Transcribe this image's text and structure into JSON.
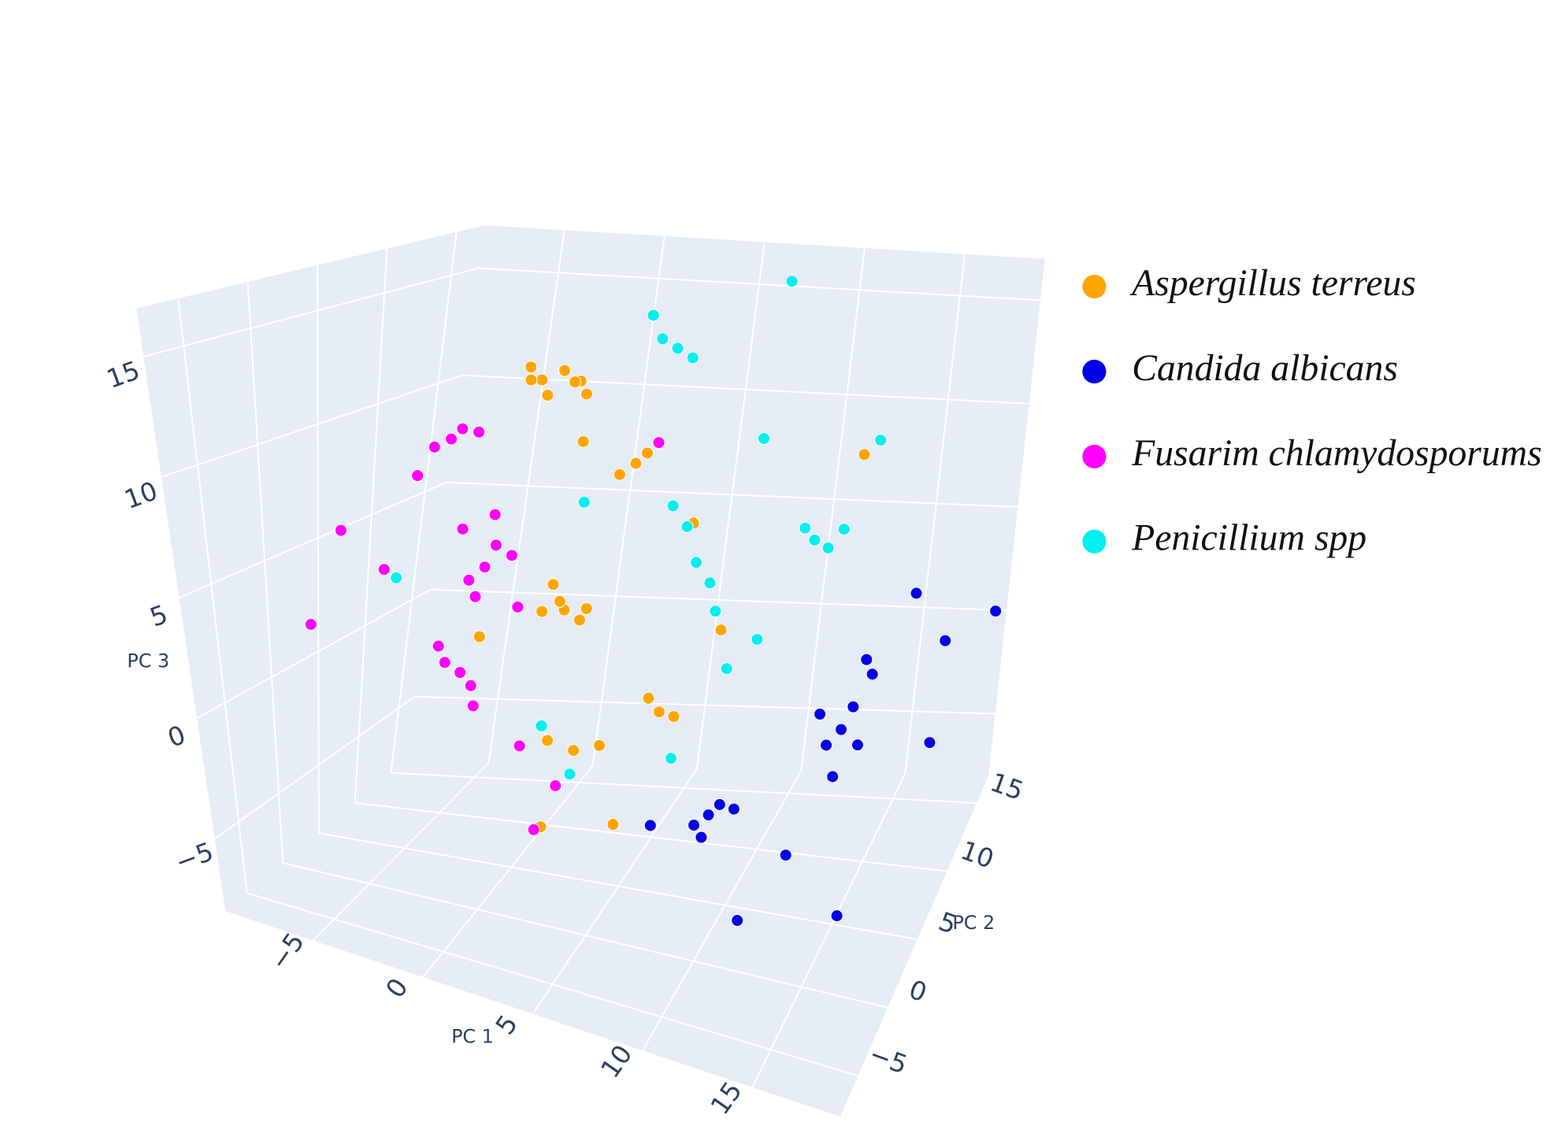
{
  "chart_data": {
    "type": "scatter3d",
    "xlabel": "PC 1",
    "ylabel": "PC 2",
    "zlabel": "PC 3",
    "xlim": [
      -9,
      19
    ],
    "ylim": [
      -8,
      17
    ],
    "zlim": [
      -8,
      17
    ],
    "xticks": [
      {
        "value": -5,
        "label": "−5"
      },
      0,
      5,
      10,
      15
    ],
    "yticks": [
      {
        "value": -5,
        "label": "−5"
      },
      0,
      5,
      10,
      15
    ],
    "zticks": [
      {
        "value": -5,
        "label": "−5"
      },
      0,
      5,
      10,
      15
    ],
    "grid": true,
    "series": [
      {
        "name": "Aspergillus terreus",
        "color": "#ffa500",
        "x": [
          1,
          2,
          1.5,
          2.5,
          0.5,
          2,
          1,
          3,
          3,
          2.5,
          3.5,
          3,
          2,
          4,
          4,
          4.5,
          3.5,
          7,
          6.5,
          7.5,
          5,
          4,
          3,
          2,
          6,
          0,
          3,
          9,
          13,
          5
        ],
        "y": [
          5,
          5,
          4.5,
          5.5,
          5,
          6,
          4,
          5,
          3,
          3,
          3.5,
          2.5,
          3,
          3,
          8,
          8,
          7.5,
          4,
          4,
          4.5,
          2,
          1.5,
          1,
          7,
          10,
          1,
          0,
          6,
          12,
          4
        ],
        "z": [
          13,
          13.5,
          12.5,
          13,
          13.5,
          12.8,
          13.2,
          12.6,
          4,
          5,
          3.5,
          4.5,
          3.8,
          4.2,
          9,
          9.5,
          8.6,
          0,
          0.5,
          -0.3,
          -1,
          -1.2,
          -0.8,
          10,
          6,
          3,
          -4,
          3,
          9,
          -5
        ]
      },
      {
        "name": "Candida albicans",
        "color": "#0000e6",
        "x": [
          15,
          15.5,
          14.5,
          16,
          15,
          14,
          16,
          15.5,
          10,
          10.5,
          9.5,
          11,
          10,
          16,
          17,
          13,
          18,
          12,
          16,
          8,
          19
        ],
        "y": [
          5,
          5,
          4.5,
          6,
          4,
          5,
          5,
          6,
          2,
          2,
          1.5,
          2.5,
          1,
          12,
          14,
          4,
          9,
          0,
          2,
          0,
          15
        ],
        "z": [
          0,
          1,
          -0.5,
          2,
          -1.5,
          0.5,
          3,
          -1,
          -3,
          -2.5,
          -3.3,
          -2.8,
          -3.5,
          3,
          0,
          -5,
          -2,
          -6,
          -6,
          -3,
          1
        ]
      },
      {
        "name": "Fusarim chlamydosporums",
        "color": "#ff00ff",
        "x": [
          -4,
          -3.5,
          -4.5,
          -3,
          -1,
          -0.5,
          -1.5,
          0,
          -1,
          -2,
          0.5,
          -1,
          -2.5,
          -3,
          -2,
          -3.5,
          -1.5,
          -7,
          -8,
          -6,
          1,
          3,
          5,
          2,
          -5
        ],
        "y": [
          7,
          7,
          6.5,
          7.5,
          4,
          4,
          3.5,
          4.5,
          3,
          4,
          4,
          5,
          5,
          4.5,
          5,
          5,
          4,
          3,
          2,
          5,
          3,
          2,
          8,
          2,
          6
        ],
        "z": [
          9.5,
          10,
          9.2,
          9.8,
          5,
          6,
          4.5,
          5.5,
          4,
          6.5,
          3.5,
          7,
          0,
          0.5,
          -0.5,
          1,
          -1,
          6,
          2,
          4,
          -2,
          -3,
          10,
          -5,
          8
        ]
      },
      {
        "name": "Penicillium spp",
        "color": "#00f0f0",
        "x": [
          4,
          3.5,
          4.5,
          5,
          7,
          6.5,
          7.5,
          6,
          8,
          11,
          10.5,
          11.5,
          12,
          10,
          9,
          8,
          3,
          9,
          2,
          4,
          13,
          -5,
          6
        ],
        "y": [
          10,
          10,
          10.5,
          11,
          8,
          8,
          8.5,
          7.5,
          8,
          12,
          12,
          12.5,
          13,
          8,
          7,
          14,
          5,
          10,
          3,
          1,
          14,
          4,
          9
        ],
        "z": [
          14,
          15,
          13.5,
          13,
          5,
          6.5,
          4,
          7.5,
          3,
          5,
          5.5,
          4.5,
          5.2,
          2,
          1,
          16,
          8,
          10,
          -1,
          -2,
          9,
          4,
          -4
        ]
      }
    ]
  }
}
